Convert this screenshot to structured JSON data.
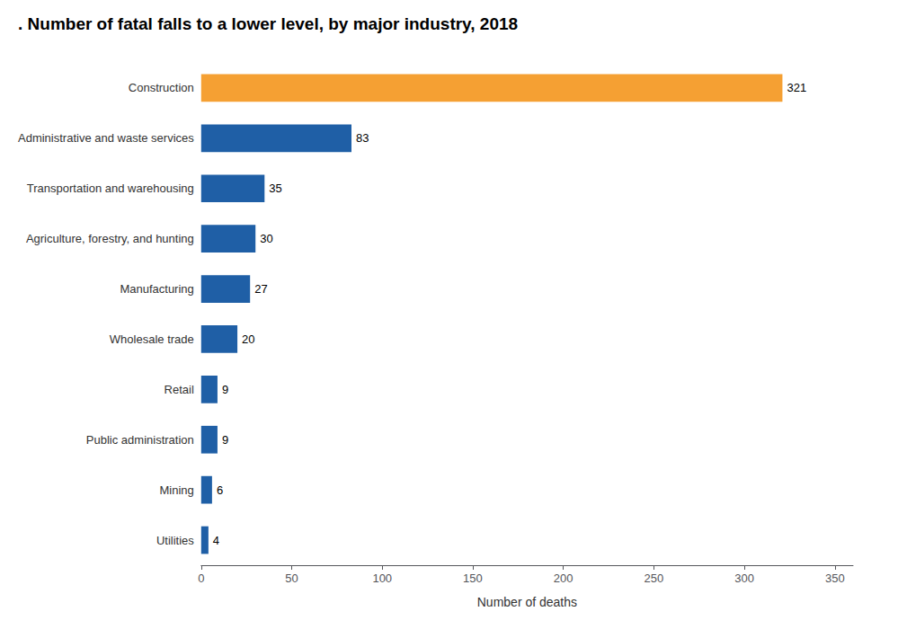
{
  "chart_data": {
    "type": "bar",
    "orientation": "horizontal",
    "title": ". Number of fatal falls to a lower level, by major industry, 2018",
    "categories": [
      "Construction",
      "Administrative and waste services",
      "Transportation and warehousing",
      "Agriculture, forestry, and hunting",
      "Manufacturing",
      "Wholesale trade",
      "Retail",
      "Public administration",
      "Mining",
      "Utilities"
    ],
    "values": [
      321,
      83,
      35,
      30,
      27,
      20,
      9,
      9,
      6,
      4
    ],
    "colors": [
      "#f5a033",
      "#1f5fa6",
      "#1f5fa6",
      "#1f5fa6",
      "#1f5fa6",
      "#1f5fa6",
      "#1f5fa6",
      "#1f5fa6",
      "#1f5fa6",
      "#1f5fa6"
    ],
    "xlabel": "Number of deaths",
    "xlim": [
      0,
      360
    ],
    "xticks": [
      0,
      50,
      100,
      150,
      200,
      250,
      300,
      350
    ],
    "data_labels": true,
    "grid": false
  }
}
